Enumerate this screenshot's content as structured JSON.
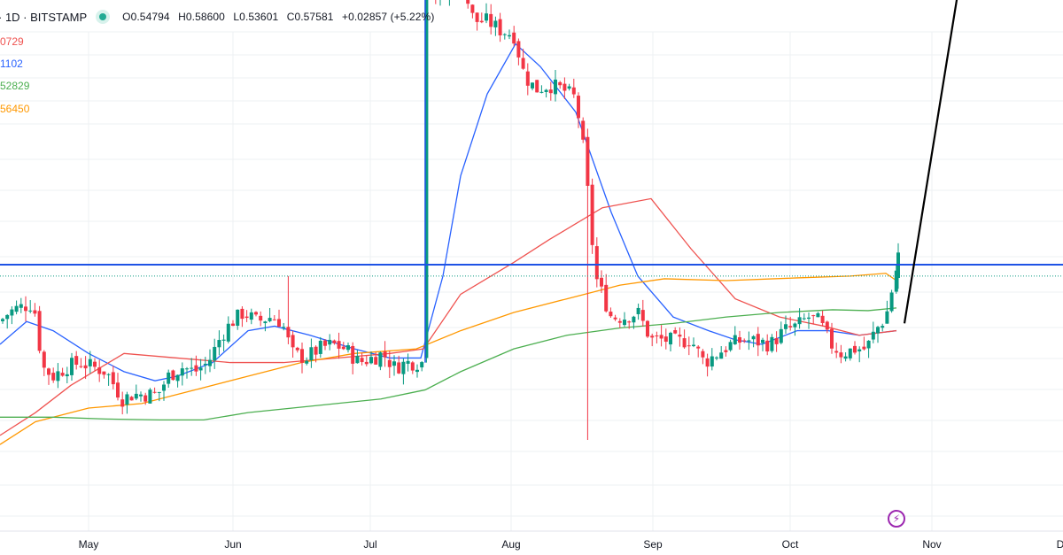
{
  "header": {
    "symbol": "· 1D · BITSTAMP",
    "open": "O0.54794",
    "high": "H0.58600",
    "low": "L0.53601",
    "close": "C0.57581",
    "change": "+0.02857 (+5.22%)"
  },
  "ma_labels": [
    {
      "text": "0729",
      "color": "#ef5350"
    },
    {
      "text": "1102",
      "color": "#2962ff"
    },
    {
      "text": "52829",
      "color": "#4caf50"
    },
    {
      "text": "56450",
      "color": "#ff9800"
    }
  ],
  "replay_icon": "lightning-icon",
  "colors": {
    "up": "#089981",
    "down": "#f23645",
    "resistance_line": "#1e53e5",
    "arrow": "#000000",
    "ma_fast": "#2962ff",
    "ma_mid": "#ef5350",
    "ma_long": "#ff9800",
    "ma_longest": "#4caf50"
  },
  "chart_data": {
    "type": "candlestick",
    "symbol": "BITSTAMP",
    "interval": "1D",
    "x_ticks": [
      "May",
      "Jun",
      "Jul",
      "Aug",
      "Sep",
      "Oct",
      "Nov",
      "D"
    ],
    "ohlc_last": {
      "open": 0.54794,
      "high": 0.586,
      "low": 0.53601,
      "close": 0.57581,
      "change": 0.02857,
      "change_pct": 5.22
    },
    "resistance_top": 0.938,
    "resistance_mid": 0.5625,
    "projection_arrow": {
      "from": 0.5,
      "to": 0.938,
      "direction": "up"
    },
    "grid": true
  }
}
